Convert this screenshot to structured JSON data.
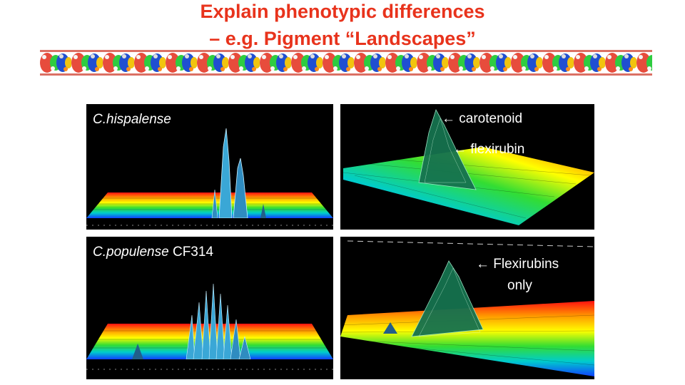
{
  "slide": {
    "title_line1": "Explain phenotypic differences",
    "title_line2": "– e.g. Pigment “Landscapes”"
  },
  "panels": {
    "top_left": {
      "species": "C.hispalense",
      "strain": ""
    },
    "top_right": {
      "annotation1": "carotenoid",
      "annotation2": "flexirubin"
    },
    "bottom_left": {
      "species": "C.populense",
      "strain": "CF314"
    },
    "bottom_right": {
      "annotation1": "Flexirubins",
      "annotation2": "only"
    }
  },
  "arrow_glyph": "←",
  "colors": {
    "title": "#e8331c",
    "panel_bg": "#000000"
  }
}
